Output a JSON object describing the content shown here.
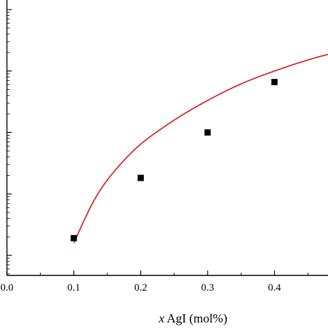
{
  "chart_data": {
    "type": "scatter",
    "xlabel_var": "x",
    "xlabel_rest": " AgI (mol%)",
    "x_ticks": [
      0.0,
      0.1,
      0.2,
      0.3,
      0.4
    ],
    "x_tick_labels": [
      "0.0",
      "0.1",
      "0.2",
      "0.3",
      "0.4"
    ],
    "xlim": [
      0.0,
      0.48
    ],
    "y_scale": "log",
    "y_tick_decades": 4,
    "series": [
      {
        "kind": "points",
        "marker": "square",
        "color": "#000000",
        "x": [
          0.1,
          0.2,
          0.3,
          0.4
        ],
        "y_decades": [
          0.28,
          1.26,
          2.0,
          2.82
        ]
      },
      {
        "kind": "line",
        "color": "#d62728",
        "x": [
          0.1,
          0.13,
          0.16,
          0.2,
          0.25,
          0.3,
          0.35,
          0.4,
          0.45,
          0.48
        ],
        "y_decades": [
          0.2,
          0.89,
          1.36,
          1.81,
          2.2,
          2.52,
          2.79,
          3.0,
          3.18,
          3.27
        ]
      }
    ],
    "grid": false,
    "legend": "none"
  }
}
